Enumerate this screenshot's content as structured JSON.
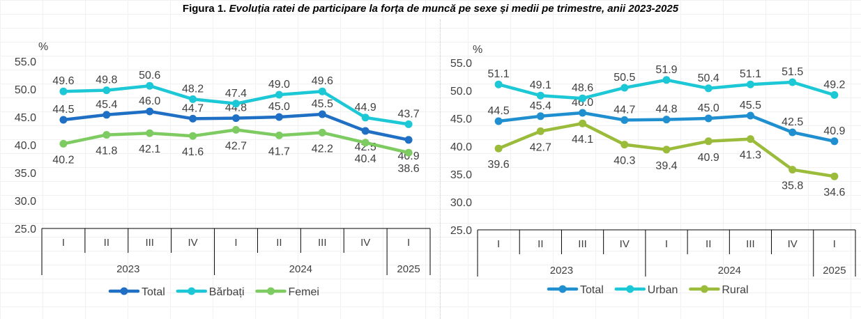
{
  "figure": {
    "title_prefix": "Figura 1.",
    "title_rest": " Evoluția ratei de participare la forța de muncă pe sexe și medii pe trimestre, anii 2023-2025"
  },
  "chart_data": [
    {
      "type": "line",
      "title": "",
      "ylabel": "%",
      "ylim": [
        25.0,
        55.0
      ],
      "yticks": [
        "25.0",
        "30.0",
        "35.0",
        "40.0",
        "45.0",
        "50.0",
        "55.0"
      ],
      "categories": [
        "I",
        "II",
        "III",
        "IV",
        "I",
        "II",
        "III",
        "IV",
        "I"
      ],
      "years": [
        {
          "label": "2023",
          "start": 0,
          "end": 3
        },
        {
          "label": "2024",
          "start": 4,
          "end": 7
        },
        {
          "label": "2025",
          "start": 8,
          "end": 8
        }
      ],
      "grid": false,
      "legend_position": "bottom",
      "series": [
        {
          "name": "Total",
          "color": "#1F6FC4",
          "values": [
            44.5,
            45.4,
            46.0,
            44.7,
            44.8,
            45.0,
            45.5,
            42.5,
            40.9
          ],
          "labels": [
            "44.5",
            "45.4",
            "46.0",
            "44.7",
            "44.8",
            "45.0",
            "45.5",
            "42.5",
            "40.9"
          ],
          "label_pos": [
            "above",
            "above",
            "above",
            "above",
            "above",
            "above",
            "above",
            "below",
            "below"
          ]
        },
        {
          "name": "Bărbați",
          "color": "#1CC7D6",
          "values": [
            49.6,
            49.8,
            50.6,
            48.2,
            47.4,
            49.0,
            49.6,
            44.9,
            43.7
          ],
          "labels": [
            "49.6",
            "49.8",
            "50.6",
            "48.2",
            "47.4",
            "49.0",
            "49.6",
            "44.9",
            "43.7"
          ],
          "label_pos": [
            "above",
            "above",
            "above",
            "above",
            "above",
            "above",
            "above",
            "above",
            "above"
          ]
        },
        {
          "name": "Femei",
          "color": "#7DCB61",
          "values": [
            40.2,
            41.8,
            42.1,
            41.6,
            42.7,
            41.7,
            42.2,
            40.4,
            38.6
          ],
          "labels": [
            "40.2",
            "41.8",
            "42.1",
            "41.6",
            "42.7",
            "41.7",
            "42.2",
            "40.4",
            "38.6"
          ],
          "label_pos": [
            "below",
            "below",
            "below",
            "below",
            "below",
            "below",
            "below",
            "below",
            "below"
          ]
        }
      ]
    },
    {
      "type": "line",
      "title": "",
      "ylabel": "%",
      "ylim": [
        25.0,
        55.0
      ],
      "yticks": [
        "25.0",
        "30.0",
        "35.0",
        "40.0",
        "45.0",
        "50.0",
        "55.0"
      ],
      "categories": [
        "I",
        "II",
        "III",
        "IV",
        "I",
        "II",
        "III",
        "IV",
        "I"
      ],
      "years": [
        {
          "label": "2023",
          "start": 0,
          "end": 3
        },
        {
          "label": "2024",
          "start": 4,
          "end": 7
        },
        {
          "label": "2025",
          "start": 8,
          "end": 8
        }
      ],
      "grid": false,
      "legend_position": "bottom",
      "series": [
        {
          "name": "Total",
          "color": "#1F8FD0",
          "values": [
            44.5,
            45.4,
            46.0,
            44.7,
            44.8,
            45.0,
            45.5,
            42.5,
            40.9
          ],
          "labels": [
            "44.5",
            "45.4",
            "46.0",
            "44.7",
            "44.8",
            "45.0",
            "45.5",
            "42.5",
            "40.9"
          ],
          "label_pos": [
            "above",
            "above",
            "above",
            "above",
            "above",
            "above",
            "above",
            "above",
            "above"
          ]
        },
        {
          "name": "Urban",
          "color": "#1CC7D6",
          "values": [
            51.1,
            49.1,
            48.6,
            50.5,
            51.9,
            50.4,
            51.1,
            51.5,
            49.2
          ],
          "labels": [
            "51.1",
            "49.1",
            "48.6",
            "50.5",
            "51.9",
            "50.4",
            "51.1",
            "51.5",
            "49.2"
          ],
          "label_pos": [
            "above",
            "above",
            "above",
            "above",
            "above",
            "above",
            "above",
            "above",
            "above"
          ]
        },
        {
          "name": "Rural",
          "color": "#9BBB3B",
          "values": [
            39.6,
            42.7,
            44.1,
            40.3,
            39.4,
            40.9,
            41.3,
            35.8,
            34.6
          ],
          "labels": [
            "39.6",
            "42.7",
            "44.1",
            "40.3",
            "39.4",
            "40.9",
            "41.3",
            "35.8",
            "34.6"
          ],
          "label_pos": [
            "below",
            "below",
            "below",
            "below",
            "below",
            "below",
            "below",
            "below",
            "below"
          ]
        }
      ]
    }
  ]
}
